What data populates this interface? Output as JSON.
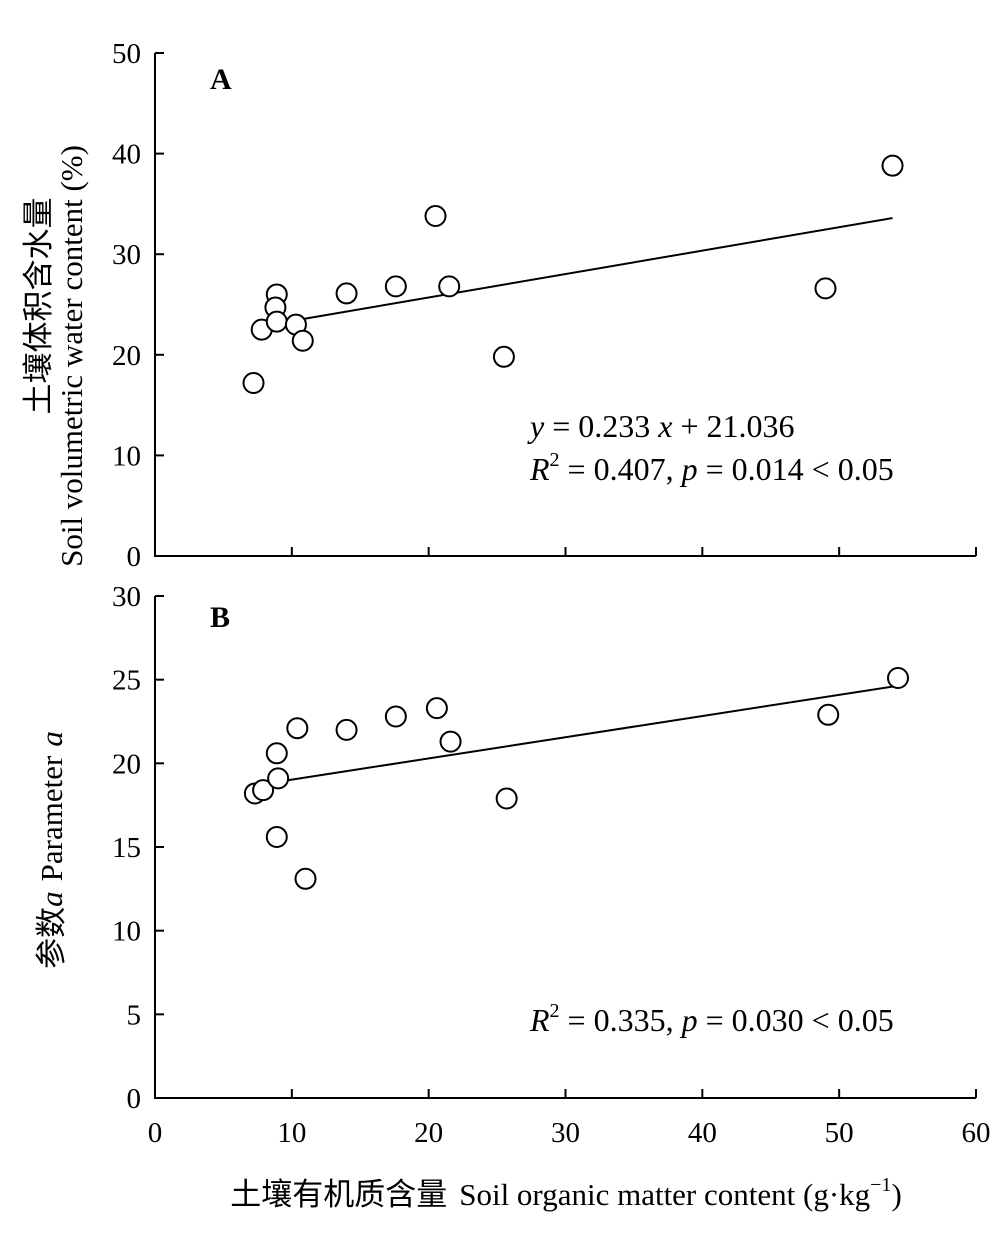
{
  "chart_data": [
    {
      "type": "scatter",
      "panel": "A",
      "ylabel_cn": "土壤体积含水量",
      "ylabel_en": "Soil volumetric water content (%)",
      "xlim": [
        0,
        60
      ],
      "ylim": [
        0,
        50
      ],
      "x_ticks": [
        "0",
        "10",
        "20",
        "30",
        "40",
        "50",
        "60"
      ],
      "y_ticks": [
        "0",
        "10",
        "20",
        "30",
        "40",
        "50"
      ],
      "x": [
        7.2,
        7.8,
        8.9,
        8.8,
        8.9,
        10.3,
        10.8,
        14.0,
        17.6,
        20.5,
        21.5,
        25.5,
        49.0,
        53.9
      ],
      "y": [
        17.2,
        22.5,
        26.0,
        24.7,
        23.3,
        23.0,
        21.4,
        26.1,
        26.8,
        33.8,
        26.8,
        19.8,
        26.6,
        38.8
      ],
      "fit": {
        "x": [
          10.5,
          53.9
        ]
      },
      "equation": {
        "y": "y",
        "eq": " = 0.233 ",
        "x": "x",
        "rest": " + 21.036",
        "slope": 0.233,
        "intercept": 21.036
      },
      "stats": {
        "R": "R",
        "sup": "2",
        "mid": " = 0.407, ",
        "p": "p",
        "tail": " = 0.014 < 0.05"
      }
    },
    {
      "type": "scatter",
      "panel": "B",
      "ylabel_cn": "参数",
      "ylabel_var": "a",
      "ylabel_en": "Parameter",
      "ylabel_en_var": "a",
      "xlim": [
        0,
        60
      ],
      "ylim": [
        0,
        30
      ],
      "x_ticks": [
        "0",
        "10",
        "20",
        "30",
        "40",
        "50",
        "60"
      ],
      "y_ticks": [
        "0",
        "5",
        "10",
        "15",
        "20",
        "25",
        "30"
      ],
      "x": [
        7.3,
        7.9,
        8.9,
        9.0,
        8.9,
        10.4,
        11.0,
        14.0,
        17.6,
        20.6,
        21.6,
        25.7,
        49.2,
        54.3
      ],
      "y": [
        18.2,
        18.4,
        20.6,
        19.1,
        15.6,
        22.1,
        13.1,
        22.0,
        22.8,
        23.3,
        21.3,
        17.9,
        22.9,
        25.1
      ],
      "fit": {
        "x": [
          9.0,
          54.0
        ],
        "y": [
          18.9,
          24.6
        ]
      },
      "stats": {
        "R": "R",
        "sup": "2",
        "mid": " = 0.335, ",
        "p": "p",
        "tail": " = 0.030 < 0.05"
      }
    }
  ],
  "xlabel_cn": "土壤有机质含量",
  "xlabel_en": "Soil organic matter content (g·kg",
  "xlabel_sup": "−1",
  "xlabel_close": ")"
}
